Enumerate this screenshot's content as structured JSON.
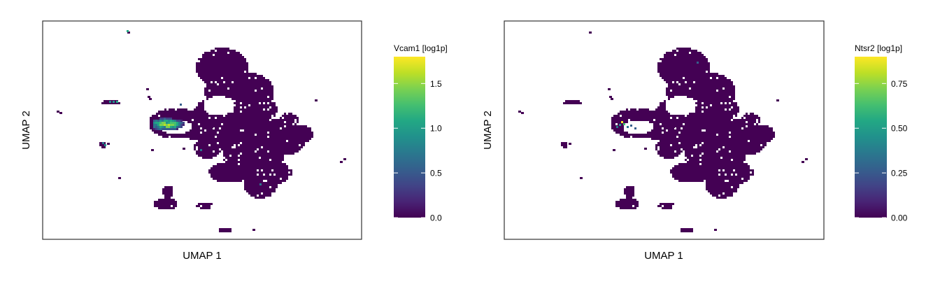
{
  "panels": [
    {
      "xlabel": "UMAP 1",
      "ylabel": "UMAP 2",
      "colorbar": {
        "title": "Vcam1 [log1p]",
        "min": 0.0,
        "max": 1.8,
        "ticks": [
          "0.0",
          "0.5",
          "1.0",
          "1.5"
        ]
      }
    },
    {
      "xlabel": "UMAP 1",
      "ylabel": "UMAP 2",
      "colorbar": {
        "title": "Ntsr2 [log1p]",
        "min": 0.0,
        "max": 0.9,
        "ticks": [
          "0.00",
          "0.25",
          "0.50",
          "0.75"
        ]
      }
    }
  ],
  "chart_data": [
    {
      "type": "heatmap",
      "subtype": "hexbin-embedding",
      "xlabel": "UMAP 1",
      "ylabel": "UMAP 2",
      "color_variable": "Vcam1 [log1p]",
      "colormap": "viridis",
      "color_range": [
        0.0,
        1.8
      ],
      "colorbar_ticks": [
        0.0,
        0.5,
        1.0,
        1.5
      ],
      "axis_ticks_shown": false,
      "grid": false,
      "high_expression_region": "small cluster at left of the main cloud, values up to ~1.8"
    },
    {
      "type": "heatmap",
      "subtype": "hexbin-embedding",
      "xlabel": "UMAP 1",
      "ylabel": "UMAP 2",
      "color_variable": "Ntsr2 [log1p]",
      "colormap": "viridis",
      "color_range": [
        0.0,
        0.9
      ],
      "colorbar_ticks": [
        0.0,
        0.25,
        0.5,
        0.75
      ],
      "axis_ticks_shown": false,
      "grid": false,
      "high_expression_region": "few bins at left of the main cloud, values up to ~0.9"
    }
  ],
  "colors": {
    "viridis": [
      "#440154",
      "#482475",
      "#414487",
      "#355f8d",
      "#2a788e",
      "#21918c",
      "#22a884",
      "#44bf70",
      "#7ad151",
      "#bddf26",
      "#fde725"
    ],
    "background": "#440154"
  }
}
